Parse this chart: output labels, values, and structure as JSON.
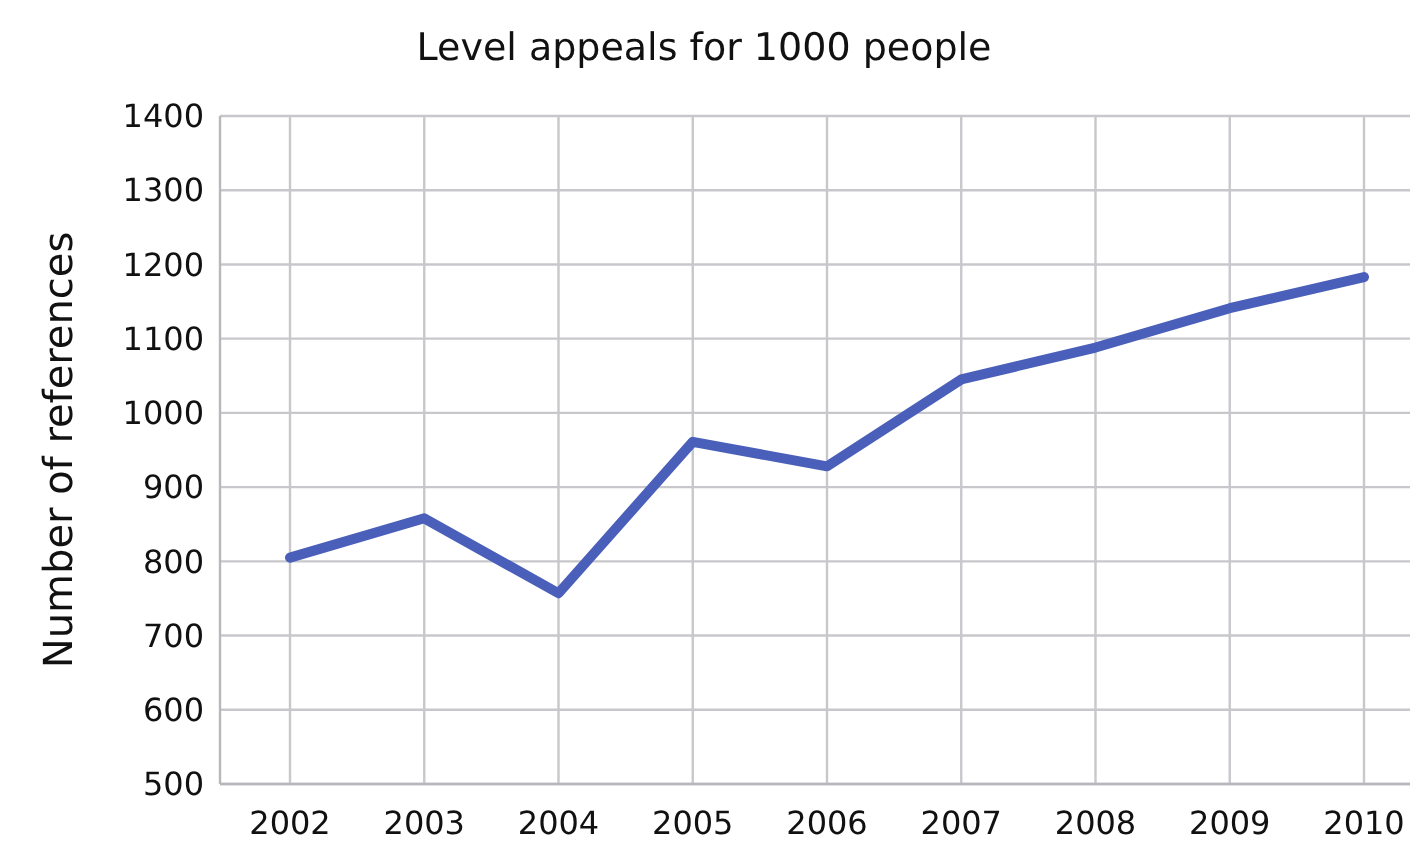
{
  "chart_data": {
    "type": "line",
    "title": "Level appeals for 1000 people",
    "ylabel": "Number of references",
    "categories": [
      "2002",
      "2003",
      "2004",
      "2005",
      "2006",
      "2007",
      "2008",
      "2009",
      "2010"
    ],
    "series": [
      {
        "color": "#4a5fb9",
        "values": [
          805,
          858,
          757,
          961,
          928,
          1045,
          1088,
          1141,
          1183
        ]
      }
    ],
    "ylim": [
      500,
      1400
    ],
    "yticks": [
      500,
      600,
      700,
      800,
      900,
      1000,
      1100,
      1200,
      1300,
      1400
    ],
    "grid": true,
    "marker": "none",
    "line_style": "solid"
  }
}
